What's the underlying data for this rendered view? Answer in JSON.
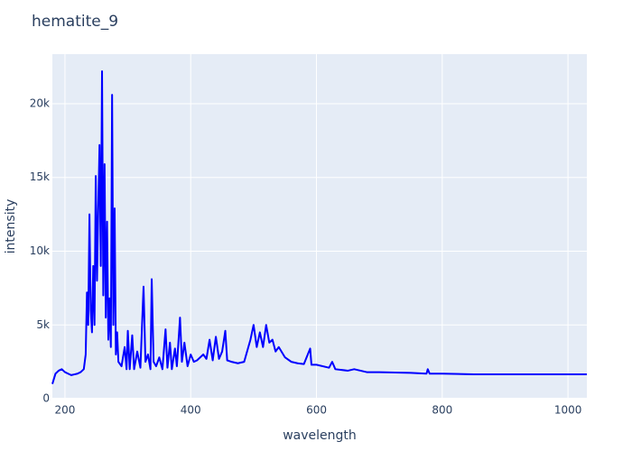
{
  "chart_data": {
    "type": "line",
    "title": "hematite_9",
    "x_label": "wavelength",
    "y_label": "intensity",
    "color": "#0000ff",
    "grid": true,
    "xlim": [
      180,
      1030
    ],
    "ylim": [
      -60,
      23360
    ],
    "xticks": [
      200,
      400,
      600,
      800,
      1000
    ],
    "yticks": [
      0,
      {
        "value": 5000,
        "label": "5k"
      },
      {
        "value": 10000,
        "label": "10k"
      },
      {
        "value": 15000,
        "label": "15k"
      },
      {
        "value": 20000,
        "label": "20k"
      }
    ],
    "x": [
      180,
      185,
      190,
      195,
      200,
      205,
      210,
      215,
      220,
      225,
      230,
      233,
      235,
      237,
      239,
      241,
      243,
      245,
      247,
      249,
      251,
      253,
      255,
      257,
      259,
      261,
      263,
      265,
      267,
      269,
      271,
      273,
      275,
      277,
      279,
      281,
      283,
      285,
      290,
      295,
      298,
      300,
      303,
      307,
      310,
      315,
      320,
      325,
      328,
      332,
      336,
      338,
      341,
      345,
      350,
      355,
      360,
      363,
      367,
      370,
      375,
      378,
      383,
      386,
      390,
      395,
      400,
      405,
      410,
      420,
      425,
      430,
      435,
      440,
      445,
      450,
      455,
      458,
      465,
      475,
      485,
      495,
      500,
      505,
      510,
      515,
      520,
      525,
      530,
      535,
      540,
      550,
      560,
      570,
      580,
      590,
      592,
      600,
      620,
      625,
      630,
      650,
      660,
      680,
      700,
      750,
      775,
      777,
      780,
      800,
      850,
      900,
      950,
      1000,
      1030
    ],
    "values": [
      1000,
      1700,
      1900,
      2000,
      1800,
      1700,
      1600,
      1650,
      1700,
      1800,
      2000,
      3000,
      7200,
      5000,
      12500,
      6000,
      4500,
      9000,
      5000,
      15100,
      8000,
      13000,
      17200,
      9000,
      22200,
      7000,
      15900,
      5500,
      12000,
      4000,
      6800,
      3500,
      20600,
      5000,
      12900,
      3000,
      4500,
      2500,
      2200,
      3500,
      2000,
      4600,
      2000,
      4300,
      2000,
      3200,
      2100,
      7600,
      2500,
      3000,
      2000,
      8100,
      2500,
      2200,
      2800,
      2000,
      4700,
      2100,
      3800,
      2000,
      3400,
      2200,
      5500,
      2500,
      3800,
      2200,
      3000,
      2500,
      2600,
      3000,
      2700,
      4000,
      2600,
      4200,
      2700,
      3200,
      4600,
      2600,
      2500,
      2400,
      2500,
      4000,
      5000,
      3500,
      4500,
      3500,
      5000,
      3800,
      4000,
      3200,
      3500,
      2800,
      2500,
      2400,
      2350,
      3400,
      2300,
      2300,
      2100,
      2500,
      2000,
      1900,
      2000,
      1800,
      1800,
      1750,
      1700,
      2000,
      1700,
      1700,
      1650,
      1650,
      1650,
      1650,
      1650
    ]
  }
}
